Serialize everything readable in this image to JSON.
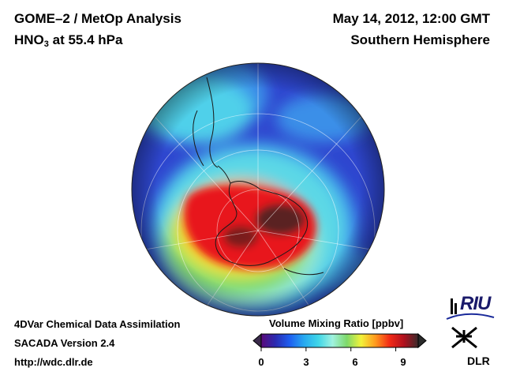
{
  "header": {
    "title_line1": "GOME–2 / MetOp Analysis",
    "species_prefix": "HNO",
    "species_sub": "3",
    "species_suffix": " at 55.4 hPa",
    "date": "May 14, 2012, 12:00 GMT",
    "hemisphere": "Southern Hemisphere"
  },
  "footer": {
    "line1": "4DVar Chemical Data Assimilation",
    "line2": "SACADA Version 2.4",
    "line3": "http://wdc.dlr.de"
  },
  "colorbar": {
    "title": "Volume Mixing Ratio [ppbv]",
    "ticks": [
      "0",
      "3",
      "6",
      "9"
    ],
    "min": 0,
    "max": 10.5,
    "colors": [
      "#5a0a7a",
      "#2a2ab0",
      "#1e5ff0",
      "#27a9f0",
      "#3fd6e8",
      "#a0f2e0",
      "#7ed96a",
      "#f2f23a",
      "#ff9a1e",
      "#f22a16",
      "#b0101e",
      "#3a2a2a"
    ]
  },
  "map": {
    "projection": "orthographic south polar",
    "colors": {
      "background_field": "#2e46cf",
      "ring": "#3fc0ec",
      "high": "#e8141e",
      "peak": "#3e2a2a"
    }
  },
  "logos": {
    "riu": "RIU",
    "dlr": "DLR"
  }
}
